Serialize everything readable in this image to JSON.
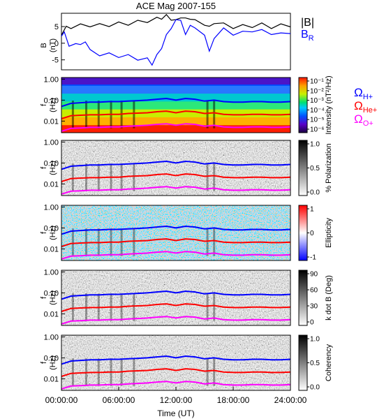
{
  "chart_data": {
    "type": "line",
    "title": "ACE Mag 2007-155",
    "x_tick_labels": [
      "00:00:00",
      "06:00:00",
      "12:00:00",
      "18:00:00",
      "24:00:00"
    ],
    "xlabel": "Time (UT)",
    "xlim_hours": [
      0,
      24
    ],
    "top_panel": {
      "ylabel": "B (nT)",
      "y_ticks": [
        "5",
        "0",
        "-5"
      ],
      "ylim": [
        -8,
        9
      ],
      "series": [
        {
          "name": "|B|",
          "color": "#000000",
          "x": [
            0,
            0.5,
            1,
            2,
            3,
            4,
            5,
            6,
            7,
            8,
            9,
            10,
            10.5,
            11,
            11.5,
            12,
            12.5,
            13,
            13.5,
            14,
            15,
            15.5,
            16,
            17,
            18,
            19,
            20,
            21,
            22,
            23,
            24
          ],
          "y": [
            3,
            4.5,
            5,
            5.2,
            5.5,
            5.3,
            5.6,
            5.8,
            6,
            6.3,
            6.8,
            7.2,
            7.8,
            8,
            7.5,
            6.5,
            8.2,
            7,
            7.8,
            6.5,
            6,
            4.5,
            6.5,
            5.5,
            5,
            5,
            5.3,
            5.5,
            5,
            5.2,
            5.5
          ]
        },
        {
          "name": "B_R",
          "color": "#0000ff",
          "x": [
            0,
            0.3,
            0.8,
            1.5,
            2,
            2.5,
            3,
            4,
            5,
            6,
            7,
            8,
            9,
            9.5,
            10,
            10.5,
            11,
            11.5,
            12,
            12.5,
            13,
            13.5,
            14,
            15,
            15.5,
            16,
            17,
            18,
            19,
            20,
            21,
            22,
            23,
            24
          ],
          "y": [
            1.5,
            4,
            -1.5,
            0.5,
            -1,
            1,
            -2.5,
            -3.2,
            -3.5,
            -3.7,
            -4,
            -4.5,
            -5,
            -6,
            -4,
            -1,
            2,
            5,
            6.5,
            7.5,
            2,
            6,
            4,
            3,
            -3,
            2,
            4,
            3,
            3,
            4,
            3.5,
            3.2,
            2.5,
            3.5
          ]
        }
      ]
    },
    "spectral_panels": [
      {
        "ylabel_top": "f",
        "ylabel_bottom": "(Hz)",
        "y_ticks": [
          "1.00",
          "0.10",
          "0.01"
        ],
        "colorbar_label": "Intensity (nT²/Hz)",
        "colorbar_scale": "log",
        "colorbar_ticks": [
          "10⁻¹",
          "10⁻²",
          "10⁻³",
          "10⁻⁴",
          "10⁻⁵",
          "10⁻⁶"
        ],
        "colormap": "rainbow"
      },
      {
        "ylabel_top": "f",
        "ylabel_bottom": "(Hz)",
        "y_ticks": [
          "1.00",
          "0.10",
          "0.01"
        ],
        "colorbar_label": "% Polarization",
        "colorbar_ticks": [
          "1.0",
          "0.5",
          "0.0"
        ],
        "colormap": "gray"
      },
      {
        "ylabel_top": "f",
        "ylabel_bottom": "(Hz)",
        "y_ticks": [
          "1.00",
          "0.10",
          "0.01"
        ],
        "colorbar_label": "Ellipticity",
        "colorbar_ticks": [
          "1",
          "0",
          "-1"
        ],
        "colormap": "blue-white-red"
      },
      {
        "ylabel_top": "f",
        "ylabel_bottom": "(Hz)",
        "y_ticks": [
          "1.00",
          "0.10",
          "0.01"
        ],
        "colorbar_label": "k dot B (Deg)",
        "colorbar_ticks": [
          "90",
          "60",
          "30",
          "0"
        ],
        "colormap": "gray"
      },
      {
        "ylabel_top": "f",
        "ylabel_bottom": "(Hz)",
        "y_ticks": [
          "1.00",
          "0.10",
          "0.01"
        ],
        "colorbar_label": "Coherency",
        "colorbar_ticks": [
          "1.0",
          "0.5",
          "0.0"
        ],
        "colormap": "gray"
      }
    ],
    "gyrofrequency_lines": [
      {
        "name": "Ω_H+",
        "color": "#0000ff",
        "x": [
          0,
          1,
          2,
          3,
          4,
          5,
          6,
          7,
          8,
          9,
          10,
          11,
          12,
          13,
          14,
          15,
          16,
          17,
          18,
          19,
          20,
          21,
          22,
          23,
          24
        ],
        "y_hz": [
          0.05,
          0.07,
          0.075,
          0.08,
          0.08,
          0.085,
          0.085,
          0.09,
          0.095,
          0.1,
          0.11,
          0.12,
          0.1,
          0.12,
          0.11,
          0.09,
          0.1,
          0.085,
          0.08,
          0.08,
          0.085,
          0.085,
          0.08,
          0.08,
          0.085
        ]
      },
      {
        "name": "Ω_He+",
        "color": "#ff0000",
        "x": [
          0,
          1,
          2,
          3,
          4,
          5,
          6,
          7,
          8,
          9,
          10,
          11,
          12,
          13,
          14,
          15,
          16,
          17,
          18,
          19,
          20,
          21,
          22,
          23,
          24
        ],
        "y_hz": [
          0.013,
          0.018,
          0.019,
          0.02,
          0.02,
          0.021,
          0.021,
          0.023,
          0.024,
          0.025,
          0.028,
          0.03,
          0.025,
          0.03,
          0.028,
          0.023,
          0.025,
          0.021,
          0.02,
          0.02,
          0.021,
          0.021,
          0.02,
          0.02,
          0.021
        ]
      },
      {
        "name": "Ω_O+",
        "color": "#ff00ff",
        "x": [
          0,
          1,
          2,
          3,
          4,
          5,
          6,
          7,
          8,
          9,
          10,
          11,
          12,
          13,
          14,
          15,
          16,
          17,
          18,
          19,
          20,
          21,
          22,
          23,
          24
        ],
        "y_hz": [
          0.0033,
          0.0045,
          0.0047,
          0.005,
          0.005,
          0.0053,
          0.0053,
          0.0057,
          0.006,
          0.0063,
          0.007,
          0.0075,
          0.0063,
          0.0075,
          0.007,
          0.0057,
          0.0063,
          0.0053,
          0.005,
          0.005,
          0.0053,
          0.0053,
          0.005,
          0.005,
          0.0053
        ]
      }
    ],
    "dips_hours": [
      1.2,
      2.6,
      3.9,
      5.2,
      6.3,
      7.6,
      15.3,
      16.0
    ],
    "legend_top": [
      {
        "label": "|B|",
        "color": "#000000"
      },
      {
        "label": "B",
        "sub": "R",
        "color": "#0000ff"
      }
    ],
    "legend_freq": [
      {
        "label": "Ω",
        "sub": "H+",
        "color": "#0000ff"
      },
      {
        "label": "Ω",
        "sub": "He+",
        "color": "#ff0000"
      },
      {
        "label": "Ω",
        "sub": "O+",
        "color": "#ff00ff"
      }
    ]
  }
}
